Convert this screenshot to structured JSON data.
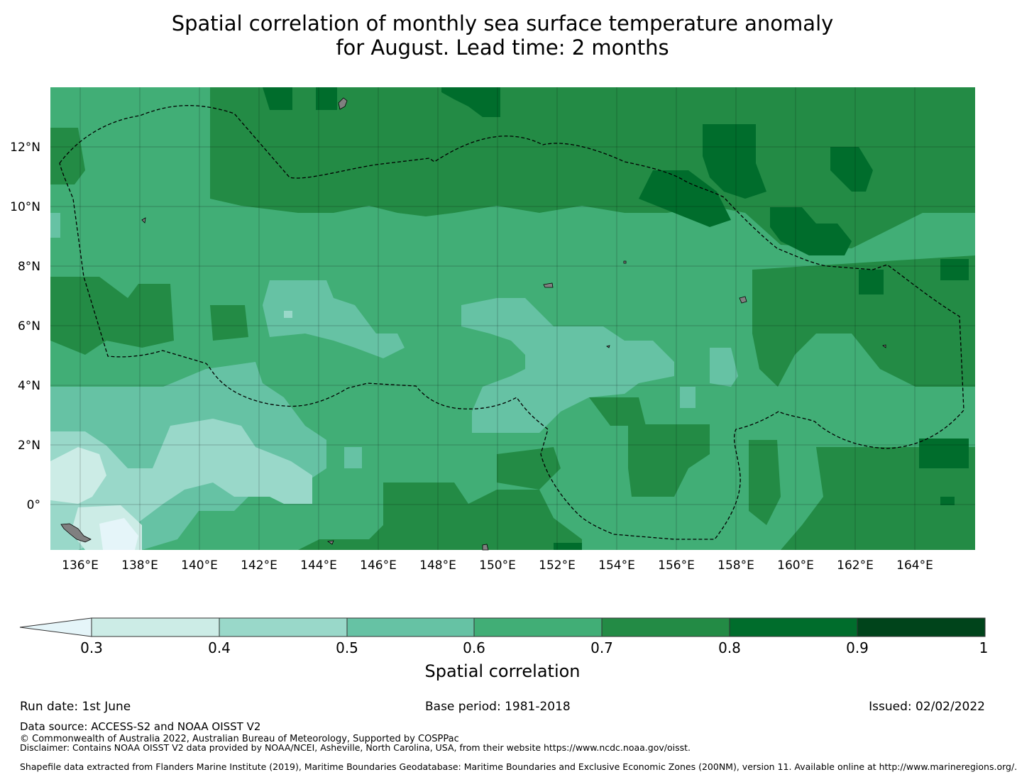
{
  "title": {
    "line1": "Spatial correlation of monthly sea surface temperature anomaly",
    "line2": "for August. Lead time: 2 months"
  },
  "map": {
    "lat_ticks": [
      "12°N",
      "10°N",
      "8°N",
      "6°N",
      "4°N",
      "2°N",
      "0°"
    ],
    "lon_ticks": [
      "136°E",
      "138°E",
      "140°E",
      "142°E",
      "144°E",
      "146°E",
      "148°E",
      "150°E",
      "152°E",
      "154°E",
      "156°E",
      "158°E",
      "160°E",
      "162°E",
      "164°E"
    ],
    "boundary_style": "black dashed EEZ outline",
    "land_color": "#808080"
  },
  "colorbar": {
    "title": "Spatial correlation",
    "ticks": [
      "0.3",
      "0.4",
      "0.5",
      "0.6",
      "0.7",
      "0.8",
      "0.9",
      "1"
    ],
    "colors": [
      "#ccece6",
      "#99d8c9",
      "#66c2a4",
      "#41ae76",
      "#238b45",
      "#006d2c",
      "#00441b"
    ],
    "under_color": "#e5f5f9"
  },
  "footer": {
    "run_date": "Run date: 1st June",
    "base_period": "Base period: 1981-2018",
    "issued": "Issued: 02/02/2022",
    "data_source": "Data source: ACCESS-S2 and NOAA OISST V2",
    "copyright": "© Commonwealth of Australia 2022, Australian Bureau of Meteorology, Supported by COSPPac",
    "disclaimer": "Disclaimer: Contains NOAA OISST V2 data provided by NOAA/NCEI, Asheville, North Carolina, USA, from their website https://www.ncdc.noaa.gov/oisst.",
    "shapefile": "Shapefile data extracted from Flanders Marine Institute (2019), Maritime Boundaries Geodatabase: Maritime Boundaries and Exclusive Economic Zones (200NM), version 11. Available online at http://www.marineregions.org/."
  }
}
